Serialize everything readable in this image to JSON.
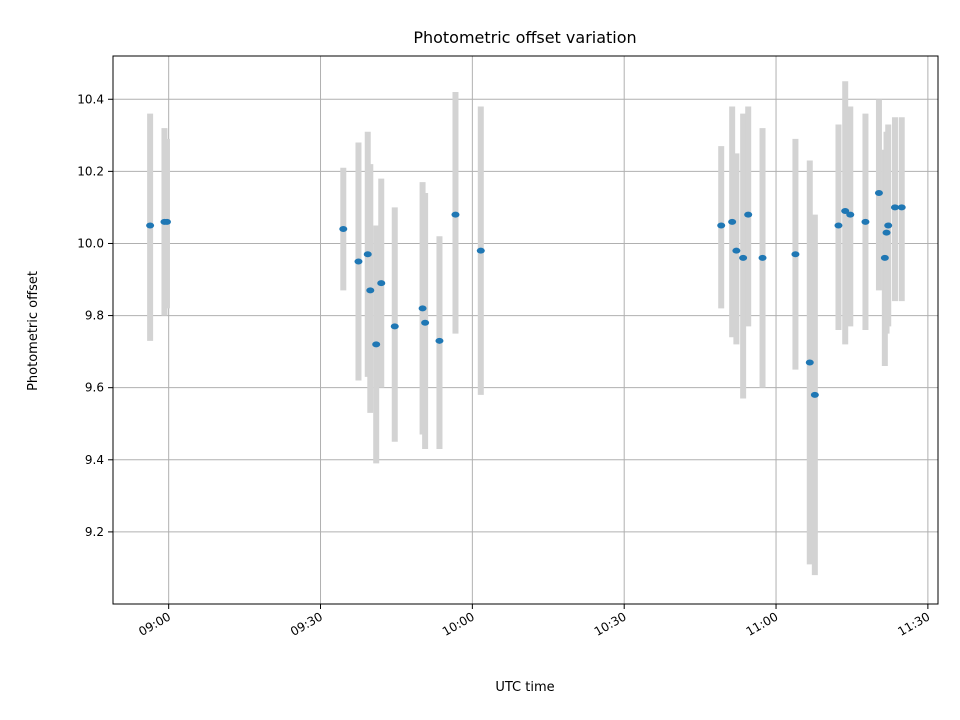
{
  "chart_data": {
    "type": "scatter",
    "title": "Photometric offset variation",
    "xlabel": "UTC time",
    "ylabel": "Photometric offset",
    "x_unit": "UTC hh:mm",
    "xlim": [
      "08:49",
      "11:32"
    ],
    "ylim": [
      9.0,
      10.52
    ],
    "x_ticks": [
      "09:00",
      "09:30",
      "10:00",
      "10:30",
      "11:00",
      "11:30"
    ],
    "y_ticks": [
      9.2,
      9.4,
      9.6,
      9.8,
      10.0,
      10.2,
      10.4
    ],
    "grid": true,
    "colors": {
      "marker": "#1f77b4",
      "errorbar": "#d3d3d3",
      "grid": "#b0b0b0"
    },
    "points": [
      {
        "x": "08:56:20",
        "y": 10.05,
        "lo": 9.73,
        "hi": 10.36
      },
      {
        "x": "08:59:10",
        "y": 10.06,
        "lo": 9.8,
        "hi": 10.32
      },
      {
        "x": "08:59:40",
        "y": 10.06,
        "lo": 9.82,
        "hi": 10.29
      },
      {
        "x": "09:34:30",
        "y": 10.04,
        "lo": 9.87,
        "hi": 10.21
      },
      {
        "x": "09:37:30",
        "y": 9.95,
        "lo": 9.62,
        "hi": 10.28
      },
      {
        "x": "09:39:20",
        "y": 9.97,
        "lo": 9.63,
        "hi": 10.31
      },
      {
        "x": "09:39:50",
        "y": 9.87,
        "lo": 9.53,
        "hi": 10.22
      },
      {
        "x": "09:41:00",
        "y": 9.72,
        "lo": 9.39,
        "hi": 10.05
      },
      {
        "x": "09:42:00",
        "y": 9.89,
        "lo": 9.6,
        "hi": 10.18
      },
      {
        "x": "09:44:40",
        "y": 9.77,
        "lo": 9.45,
        "hi": 10.1
      },
      {
        "x": "09:50:10",
        "y": 9.82,
        "lo": 9.47,
        "hi": 10.17
      },
      {
        "x": "09:50:40",
        "y": 9.78,
        "lo": 9.43,
        "hi": 10.14
      },
      {
        "x": "09:53:30",
        "y": 9.73,
        "lo": 9.43,
        "hi": 10.02
      },
      {
        "x": "09:56:40",
        "y": 10.08,
        "lo": 9.75,
        "hi": 10.42
      },
      {
        "x": "10:01:40",
        "y": 9.98,
        "lo": 9.58,
        "hi": 10.38
      },
      {
        "x": "10:49:10",
        "y": 10.05,
        "lo": 9.82,
        "hi": 10.27
      },
      {
        "x": "10:51:20",
        "y": 10.06,
        "lo": 9.74,
        "hi": 10.38
      },
      {
        "x": "10:52:10",
        "y": 9.98,
        "lo": 9.72,
        "hi": 10.25
      },
      {
        "x": "10:53:30",
        "y": 9.96,
        "lo": 9.57,
        "hi": 10.36
      },
      {
        "x": "10:54:30",
        "y": 10.08,
        "lo": 9.77,
        "hi": 10.38
      },
      {
        "x": "10:57:20",
        "y": 9.96,
        "lo": 9.6,
        "hi": 10.32
      },
      {
        "x": "11:03:50",
        "y": 9.97,
        "lo": 9.65,
        "hi": 10.29
      },
      {
        "x": "11:06:40",
        "y": 9.67,
        "lo": 9.11,
        "hi": 10.23
      },
      {
        "x": "11:07:40",
        "y": 9.58,
        "lo": 9.08,
        "hi": 10.08
      },
      {
        "x": "11:12:20",
        "y": 10.05,
        "lo": 9.76,
        "hi": 10.33
      },
      {
        "x": "11:13:40",
        "y": 10.09,
        "lo": 9.72,
        "hi": 10.45
      },
      {
        "x": "11:14:40",
        "y": 10.08,
        "lo": 9.77,
        "hi": 10.38
      },
      {
        "x": "11:17:40",
        "y": 10.06,
        "lo": 9.76,
        "hi": 10.36
      },
      {
        "x": "11:20:20",
        "y": 10.14,
        "lo": 9.87,
        "hi": 10.4
      },
      {
        "x": "11:21:30",
        "y": 9.96,
        "lo": 9.66,
        "hi": 10.26
      },
      {
        "x": "11:21:50",
        "y": 10.03,
        "lo": 9.75,
        "hi": 10.31
      },
      {
        "x": "11:22:10",
        "y": 10.05,
        "lo": 9.77,
        "hi": 10.33
      },
      {
        "x": "11:23:30",
        "y": 10.1,
        "lo": 9.84,
        "hi": 10.35
      },
      {
        "x": "11:24:50",
        "y": 10.1,
        "lo": 9.84,
        "hi": 10.35
      }
    ]
  }
}
